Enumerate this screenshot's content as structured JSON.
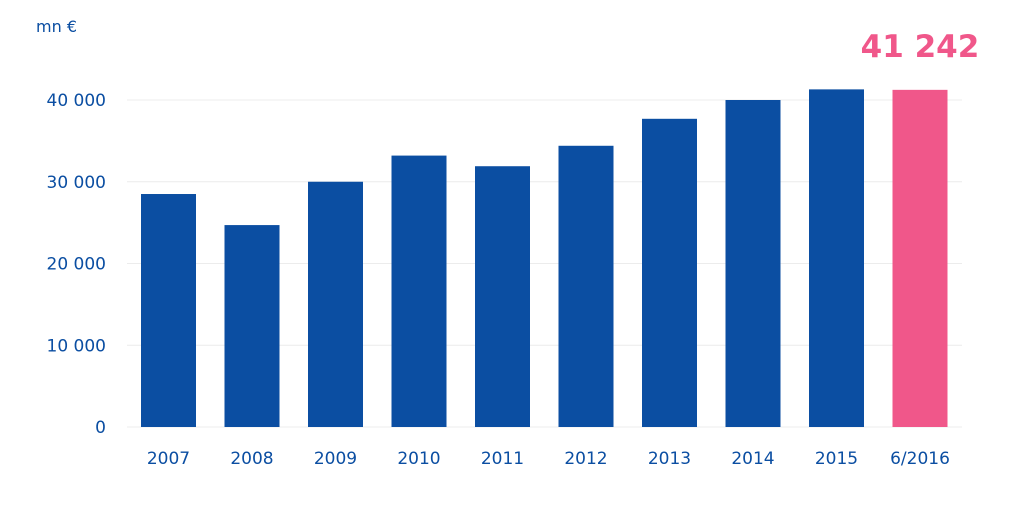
{
  "chart_data": {
    "type": "bar",
    "unit_label": "mn €",
    "categories": [
      "2007",
      "2008",
      "2009",
      "2010",
      "2011",
      "2012",
      "2013",
      "2014",
      "2015",
      "6/2016"
    ],
    "values": [
      28500,
      24700,
      30000,
      33200,
      31900,
      34400,
      37700,
      40000,
      41300,
      41242
    ],
    "highlight": {
      "index": 9,
      "label": "41 242"
    },
    "y_ticks": [
      {
        "value": 0,
        "label": "0"
      },
      {
        "value": 10000,
        "label": "10 000"
      },
      {
        "value": 20000,
        "label": "20 000"
      },
      {
        "value": 30000,
        "label": "30 000"
      },
      {
        "value": 40000,
        "label": "40 000"
      }
    ],
    "ylim": [
      0,
      40000
    ],
    "grid": true,
    "legend": "none",
    "colors": {
      "bar": "#0b4ea2",
      "highlight_bar": "#f0578a",
      "text": "#0b4ea2",
      "highlight_text": "#f0578a",
      "grid": "#ececec"
    }
  }
}
